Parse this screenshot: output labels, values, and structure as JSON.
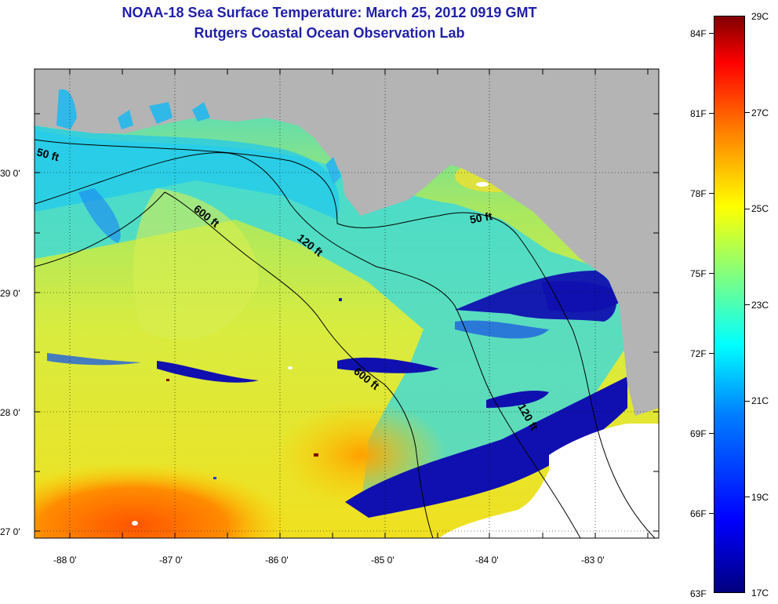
{
  "title_line1": "NOAA-18 Sea Surface Temperature:  March 25, 2012 0919 GMT",
  "title_line2": "Rutgers Coastal Ocean Observation Lab",
  "map": {
    "lat_labels": [
      "30 0'",
      "29 0'",
      "28 0'",
      "27 0'"
    ],
    "lon_labels": [
      "-88 0'",
      "-87 0'",
      "-86 0'",
      "-85 0'",
      "-84 0'",
      "-83 0'"
    ],
    "isobath_labels": [
      "50 ft",
      "600 ft",
      "120 ft",
      "50 ft",
      "600 ft",
      "120 ft"
    ],
    "colors": {
      "land": "#b4b4b4",
      "clouds": "#ffffff",
      "contour": "#000000"
    }
  },
  "colorbar": {
    "celsius": [
      "29C",
      "27C",
      "25C",
      "23C",
      "21C",
      "19C",
      "17C"
    ],
    "fahrenheit": [
      "84F",
      "81F",
      "78F",
      "75F",
      "72F",
      "69F",
      "66F",
      "63F"
    ],
    "range_c": [
      17,
      29
    ]
  }
}
